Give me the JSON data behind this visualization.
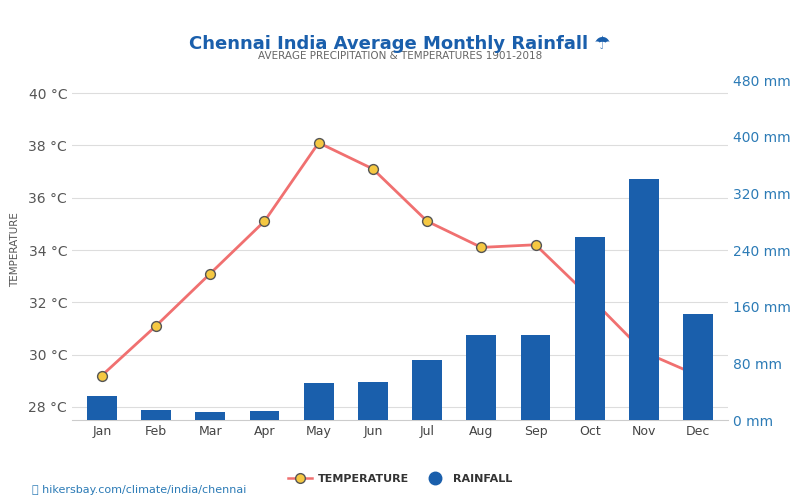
{
  "title": "Chennai India Average Monthly Rainfall ☂",
  "subtitle": "AVERAGE PRECIPITATION & TEMPERATURES 1901-2018",
  "months": [
    "Jan",
    "Feb",
    "Mar",
    "Apr",
    "May",
    "Jun",
    "Jul",
    "Aug",
    "Sep",
    "Oct",
    "Nov",
    "Dec"
  ],
  "temperature": [
    29.2,
    31.1,
    33.1,
    35.1,
    38.1,
    37.1,
    35.1,
    34.1,
    34.2,
    32.2,
    30.1,
    29.2
  ],
  "rainfall": [
    34,
    14,
    11,
    13,
    52,
    53,
    85,
    120,
    120,
    258,
    340,
    150
  ],
  "bar_color": "#1a5fac",
  "line_color": "#f07070",
  "marker_face": "#f5c842",
  "marker_edge": "#555555",
  "temp_ylim": [
    27.5,
    40.5
  ],
  "rain_ylim": [
    0,
    480
  ],
  "temp_yticks": [
    28,
    30,
    32,
    34,
    36,
    38,
    40
  ],
  "rain_yticks": [
    0,
    80,
    160,
    240,
    320,
    400,
    480
  ],
  "title_color": "#1a5fac",
  "subtitle_color": "#666666",
  "right_axis_color": "#2c7bb6",
  "left_tick_color": "#555555",
  "ylabel_left_color": "#555555",
  "watermark": "hikersbay.com/climate/india/chennai",
  "background_color": "#ffffff",
  "grid_color": "#dddddd"
}
